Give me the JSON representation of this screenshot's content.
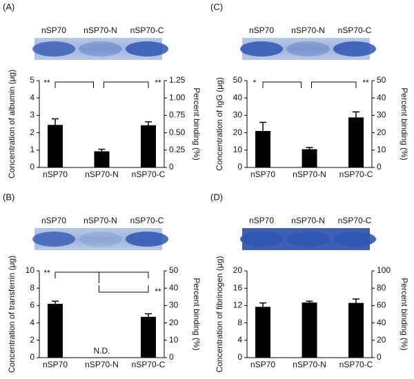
{
  "chart_data": [
    {
      "type": "bar",
      "panel_label": "(A)",
      "gel_labels": [
        "nSP70",
        "nSP70-N",
        "nSP70-C"
      ],
      "categories": [
        "nSP70",
        "nSP70-N",
        "nSP70-C"
      ],
      "values": [
        2.45,
        0.93,
        2.43
      ],
      "errors": [
        0.35,
        0.12,
        0.2
      ],
      "color": "#000000",
      "y_label": "Concentration of albumin (μg)",
      "y2_label": "Percent binding (%)",
      "ylim": [
        0,
        5
      ],
      "yticks": [
        0,
        1,
        2,
        3,
        4,
        5
      ],
      "y2lim": [
        0,
        1.25
      ],
      "y2ticks": [
        0,
        0.25,
        {
          "value": 0.5,
          "label": "0.50"
        },
        0.75,
        {
          "value": 1,
          "label": "1.00"
        },
        1.25
      ],
      "annotations": [
        "**",
        "**"
      ]
    },
    {
      "type": "bar",
      "panel_label": "(B)",
      "gel_labels": [
        "nSP70",
        "nSP70-N",
        "nSP70-C"
      ],
      "categories": [
        "nSP70",
        "nSP70-N",
        "nSP70-C"
      ],
      "values": [
        6.2,
        null,
        4.7
      ],
      "errors": [
        0.3,
        null,
        0.35
      ],
      "color": "#000000",
      "y_label": "Concentration of transferrin (μg)",
      "y2_label": "Percent binding (%)",
      "ylim": [
        0,
        10
      ],
      "yticks": [
        0,
        2,
        4,
        6,
        8,
        10
      ],
      "y2lim": [
        0,
        50
      ],
      "y2ticks": [
        0,
        10,
        20,
        30,
        40,
        50
      ],
      "annotations": [
        "**",
        "**",
        "N.D."
      ]
    },
    {
      "type": "bar",
      "panel_label": "(C)",
      "gel_labels": [
        "nSP70",
        "nSP70-N",
        "nSP70-C"
      ],
      "categories": [
        "nSP70",
        "nSP70-N",
        "nSP70-C"
      ],
      "values": [
        21,
        10.5,
        28.8
      ],
      "errors": [
        5,
        1,
        3.2
      ],
      "color": "#000000",
      "y_label": "Concentration of IgG (μg)",
      "y2_label": "Percent binding (%)",
      "ylim": [
        0,
        50
      ],
      "yticks": [
        0,
        10,
        20,
        30,
        40,
        50
      ],
      "y2lim": [
        0,
        50
      ],
      "y2ticks": [
        0,
        10,
        20,
        30,
        40,
        50
      ],
      "annotations": [
        "*",
        "**"
      ]
    },
    {
      "type": "bar",
      "panel_label": "(D)",
      "gel_labels": [
        "nSP70",
        "nSP70-N",
        "nSP70-C"
      ],
      "categories": [
        "nSP70",
        "nSP70-N",
        "nSP70-C"
      ],
      "values": [
        11.7,
        12.7,
        12.6
      ],
      "errors": [
        0.9,
        0.3,
        0.9
      ],
      "color": "#000000",
      "y_label": "Concentration of fibrinogen (μg)",
      "y2_label": "Percent binding (%)",
      "ylim": [
        0,
        20
      ],
      "yticks": [
        0,
        4,
        8,
        12,
        16,
        20
      ],
      "y2lim": [
        0,
        100
      ],
      "y2ticks": [
        0,
        20,
        40,
        60,
        80,
        100
      ],
      "annotations": []
    }
  ]
}
